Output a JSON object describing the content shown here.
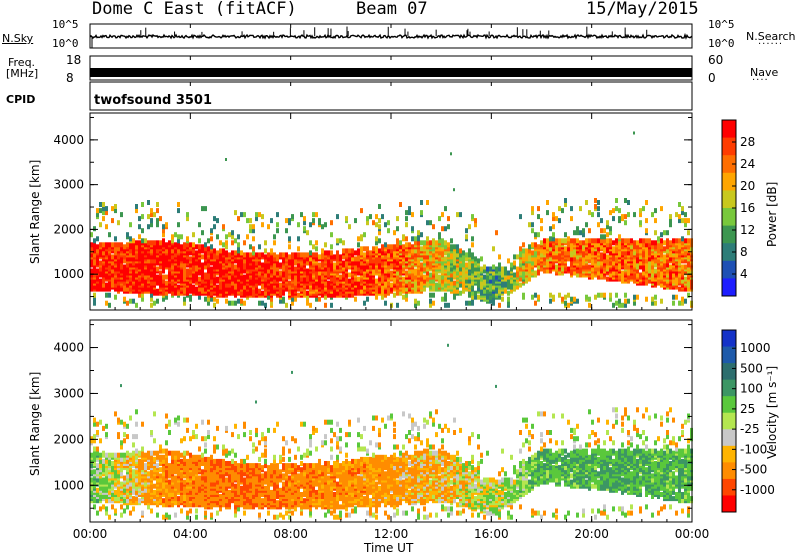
{
  "header": {
    "title": "Dome C East (fitACF)",
    "beam": "Beam 07",
    "date": "15/May/2015"
  },
  "strips": {
    "nsky_label": "N.Sky",
    "nsky_top": "10^5",
    "nsky_bottom": "10^0",
    "nsearch_label": "N.Search",
    "nsearch_top": "10^5",
    "nsearch_bottom": "10^0",
    "freq_label": "Freq.",
    "freq_unit": "[MHz]",
    "freq_top": "18",
    "freq_bottom": "8",
    "nave_label": "Nave",
    "nave_top": "60",
    "nave_bottom": "0",
    "cpid_label": "CPID",
    "cpid_value": "twofsound 3501"
  },
  "colors": {
    "power_scale": [
      "#1e1eff",
      "#1e50b4",
      "#2d7d78",
      "#3c9650",
      "#78c83c",
      "#c8c81e",
      "#ffa500",
      "#ff6e00",
      "#ff3c00",
      "#ff0000"
    ],
    "velocity_scale": [
      "#ff0000",
      "#ff4600",
      "#ff8c00",
      "#ffb400",
      "#c8c8c8",
      "#b4e650",
      "#5ac83c",
      "#3c9664",
      "#2d6e6e",
      "#1e5aaa",
      "#1432c8"
    ]
  },
  "chart_data": [
    {
      "type": "heatmap",
      "panel": "power",
      "ylabel": "Slant Range [km]",
      "xlabel": "",
      "ylim": [
        200,
        4600
      ],
      "xlim": [
        "00:00",
        "24:00"
      ],
      "x_ticks": [
        "00:00",
        "04:00",
        "08:00",
        "12:00",
        "16:00",
        "20:00",
        "00:00"
      ],
      "y_ticks": [
        "1000",
        "2000",
        "3000",
        "4000"
      ],
      "colorbar": {
        "label": "Power [dB]",
        "ticks": [
          "4",
          "8",
          "12",
          "16",
          "20",
          "24",
          "28"
        ],
        "range": [
          0,
          30
        ]
      },
      "series": [
        {
          "time_h": 0.0,
          "range_km": [
            600,
            1600
          ],
          "power_db": 28
        },
        {
          "time_h": 3.0,
          "range_km": [
            500,
            1700
          ],
          "power_db": 27
        },
        {
          "time_h": 6.0,
          "range_km": [
            450,
            1400
          ],
          "power_db": 28
        },
        {
          "time_h": 9.0,
          "range_km": [
            450,
            1400
          ],
          "power_db": 26
        },
        {
          "time_h": 12.0,
          "range_km": [
            500,
            1600
          ],
          "power_db": 24
        },
        {
          "time_h": 14.0,
          "range_km": [
            600,
            1700
          ],
          "power_db": 18
        },
        {
          "time_h": 16.0,
          "range_km": [
            300,
            1100
          ],
          "power_db": 10
        },
        {
          "time_h": 18.0,
          "range_km": [
            1000,
            1700
          ],
          "power_db": 22
        },
        {
          "time_h": 21.0,
          "range_km": [
            800,
            1700
          ],
          "power_db": 24
        },
        {
          "time_h": 23.5,
          "range_km": [
            600,
            1700
          ],
          "power_db": 22
        }
      ]
    },
    {
      "type": "heatmap",
      "panel": "velocity",
      "ylabel": "Slant Range [km]",
      "xlabel": "Time UT",
      "ylim": [
        200,
        4600
      ],
      "xlim": [
        "00:00",
        "24:00"
      ],
      "x_ticks": [
        "00:00",
        "04:00",
        "08:00",
        "12:00",
        "16:00",
        "20:00",
        "00:00"
      ],
      "y_ticks": [
        "1000",
        "2000",
        "3000",
        "4000"
      ],
      "colorbar": {
        "label": "Velocity [m s⁻¹]",
        "ticks": [
          "1000",
          "500",
          "100",
          "25",
          "-25",
          "-100",
          "-500",
          "-1000"
        ]
      },
      "series": [
        {
          "time_h": 0.0,
          "range_km": [
            600,
            1600
          ],
          "velocity_ms": 150
        },
        {
          "time_h": 3.0,
          "range_km": [
            500,
            1700
          ],
          "velocity_ms": -200
        },
        {
          "time_h": 6.0,
          "range_km": [
            450,
            1400
          ],
          "velocity_ms": -300
        },
        {
          "time_h": 9.0,
          "range_km": [
            450,
            1400
          ],
          "velocity_ms": -200
        },
        {
          "time_h": 12.0,
          "range_km": [
            500,
            1600
          ],
          "velocity_ms": -150
        },
        {
          "time_h": 14.0,
          "range_km": [
            600,
            1700
          ],
          "velocity_ms": -50
        },
        {
          "time_h": 16.0,
          "range_km": [
            300,
            1100
          ],
          "velocity_ms": 50
        },
        {
          "time_h": 18.0,
          "range_km": [
            1000,
            1700
          ],
          "velocity_ms": 200
        },
        {
          "time_h": 21.0,
          "range_km": [
            800,
            1700
          ],
          "velocity_ms": 250
        },
        {
          "time_h": 23.5,
          "range_km": [
            600,
            1700
          ],
          "velocity_ms": 200
        }
      ]
    }
  ]
}
